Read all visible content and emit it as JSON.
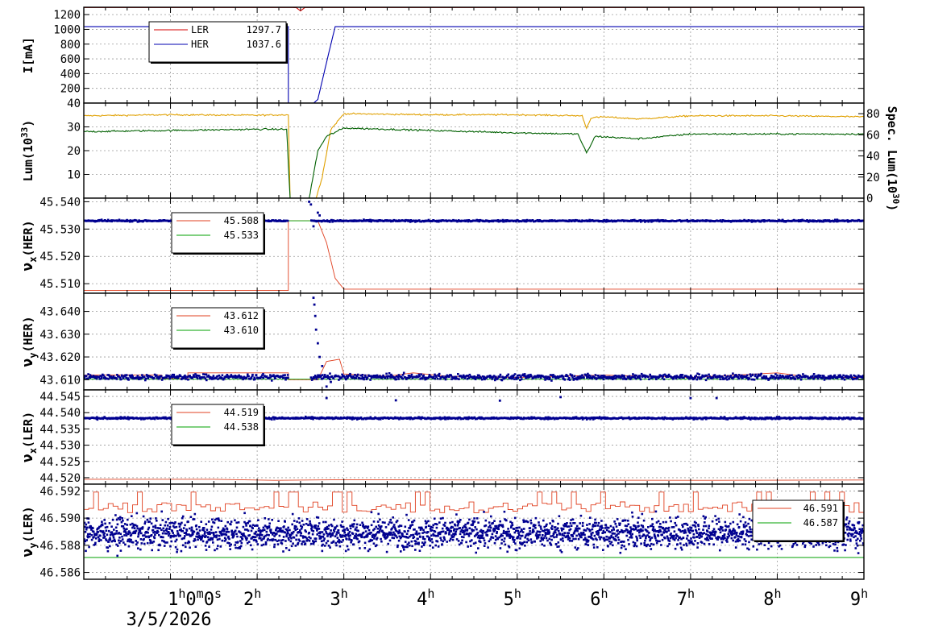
{
  "chart_data": [
    {
      "type": "line",
      "ylabel": "I[mA]",
      "ylim": [
        0,
        1300
      ],
      "yticks": [
        200,
        400,
        600,
        800,
        1000,
        1200
      ],
      "legend": {
        "placement": "top-left",
        "entries": [
          {
            "name": "LER",
            "value": "1297.7",
            "color": "#d40000"
          },
          {
            "name": "HER",
            "value": "1037.6",
            "color": "#0000b0"
          }
        ]
      },
      "series": [
        {
          "name": "LER",
          "color": "#d40000",
          "points": [
            [
              0,
              1297
            ],
            [
              2.3,
              1297
            ],
            [
              2.45,
              1296
            ],
            [
              2.5,
              1250
            ],
            [
              2.55,
              1297
            ],
            [
              9,
              1297
            ]
          ]
        },
        {
          "name": "HER",
          "color": "#0000b0",
          "points": [
            [
              0,
              1037
            ],
            [
              2.36,
              1037
            ],
            [
              2.36,
              0
            ],
            [
              2.65,
              0
            ],
            [
              2.7,
              50
            ],
            [
              2.75,
              300
            ],
            [
              2.82,
              650
            ],
            [
              2.9,
              1037
            ],
            [
              9,
              1037
            ]
          ]
        }
      ]
    },
    {
      "type": "line",
      "ylabel": "Lum(10^33)",
      "y2label": "Spec. Lum(10^30)",
      "ylim": [
        0,
        40
      ],
      "yticks": [
        10,
        20,
        30,
        40
      ],
      "y2lim": [
        0,
        90
      ],
      "y2ticks": [
        0,
        20,
        40,
        60,
        80
      ],
      "series": [
        {
          "name": "Spec. Lum",
          "axis": "right",
          "color": "#e0a000",
          "points": [
            [
              0,
              78
            ],
            [
              1,
              79
            ],
            [
              2,
              78.5
            ],
            [
              2.36,
              79
            ],
            [
              2.38,
              0
            ],
            [
              2.68,
              0
            ],
            [
              2.75,
              20
            ],
            [
              2.85,
              65
            ],
            [
              3.0,
              80
            ],
            [
              4,
              79
            ],
            [
              5,
              79
            ],
            [
              5.75,
              78
            ],
            [
              5.8,
              66
            ],
            [
              5.85,
              76
            ],
            [
              6,
              77
            ],
            [
              6.4,
              75
            ],
            [
              7,
              78
            ],
            [
              8,
              78
            ],
            [
              9,
              77
            ]
          ]
        },
        {
          "name": "Lum",
          "axis": "left",
          "color": "#006000",
          "points": [
            [
              0,
              28
            ],
            [
              1,
              28.5
            ],
            [
              2,
              29
            ],
            [
              2.34,
              29
            ],
            [
              2.36,
              14
            ],
            [
              2.38,
              0
            ],
            [
              2.6,
              0
            ],
            [
              2.65,
              10
            ],
            [
              2.7,
              20
            ],
            [
              2.8,
              26
            ],
            [
              3.0,
              29.5
            ],
            [
              4,
              28.5
            ],
            [
              5,
              27.5
            ],
            [
              5.7,
              27
            ],
            [
              5.8,
              19
            ],
            [
              5.9,
              26
            ],
            [
              6.4,
              25
            ],
            [
              7,
              27
            ],
            [
              8,
              27
            ],
            [
              9,
              27
            ]
          ]
        }
      ]
    },
    {
      "type": "scatter",
      "ylabel": "νx(HER)",
      "ylim": [
        45.5065,
        45.5413
      ],
      "yticks": [
        45.51,
        45.52,
        45.53,
        45.54
      ],
      "legend": {
        "placement": "top-left",
        "entries": [
          {
            "name": "",
            "value": "45.508",
            "color": "#e04020"
          },
          {
            "name": "",
            "value": "45.533",
            "color": "#00a000"
          }
        ]
      },
      "series": [
        {
          "name": "set",
          "kind": "line",
          "color": "#e04020",
          "points": [
            [
              0,
              45.5075
            ],
            [
              2.36,
              45.5075
            ],
            [
              2.36,
              45.533
            ],
            [
              2.7,
              45.533
            ],
            [
              2.8,
              45.525
            ],
            [
              2.9,
              45.512
            ],
            [
              3,
              45.508
            ],
            [
              9,
              45.508
            ]
          ]
        },
        {
          "name": "ref",
          "kind": "line",
          "color": "#00a000",
          "points": [
            [
              0,
              45.533
            ],
            [
              9,
              45.533
            ]
          ]
        },
        {
          "name": "meas",
          "kind": "dots",
          "color": "#000090",
          "base": 45.533,
          "spread": 0.0003,
          "xmin": 0.0,
          "xmax": 9.0,
          "n": 1100,
          "gaps": [
            [
              2.36,
              2.62
            ]
          ],
          "outliers": [
            [
              2.6,
              45.54
            ],
            [
              2.62,
              45.539
            ],
            [
              2.65,
              45.531
            ],
            [
              2.7,
              45.536
            ],
            [
              2.72,
              45.535
            ]
          ]
        }
      ]
    },
    {
      "type": "scatter",
      "ylabel": "νy(HER)",
      "ylim": [
        43.6055,
        43.648
      ],
      "yticks": [
        43.61,
        43.62,
        43.63,
        43.64
      ],
      "legend": {
        "placement": "top-left",
        "entries": [
          {
            "name": "",
            "value": "43.612",
            "color": "#e04020"
          },
          {
            "name": "",
            "value": "43.610",
            "color": "#00a000"
          }
        ]
      },
      "series": [
        {
          "name": "set",
          "kind": "line",
          "color": "#e04020",
          "points": [
            [
              0,
              43.612
            ],
            [
              0.9,
              43.612
            ],
            [
              0.9,
              43.6105
            ],
            [
              1.2,
              43.6105
            ],
            [
              1.2,
              43.613
            ],
            [
              2.36,
              43.613
            ],
            [
              2.36,
              43.61
            ],
            [
              2.7,
              43.61
            ],
            [
              2.8,
              43.618
            ],
            [
              2.95,
              43.619
            ],
            [
              3.0,
              43.6125
            ],
            [
              3.5,
              43.6115
            ],
            [
              3.8,
              43.613
            ],
            [
              4.2,
              43.6115
            ],
            [
              5,
              43.611
            ],
            [
              6,
              43.612
            ],
            [
              7,
              43.611
            ],
            [
              8,
              43.613
            ],
            [
              8.4,
              43.611
            ],
            [
              9,
              43.611
            ]
          ]
        },
        {
          "name": "ref",
          "kind": "line",
          "color": "#00a000",
          "points": [
            [
              0,
              43.6102
            ],
            [
              9,
              43.6102
            ]
          ]
        },
        {
          "name": "meas",
          "kind": "dots",
          "color": "#000090",
          "base": 43.6112,
          "spread": 0.0012,
          "xmin": 0.0,
          "xmax": 9.0,
          "n": 1100,
          "gaps": [
            [
              2.36,
              2.62
            ]
          ],
          "outliers": [
            [
              2.65,
              43.646
            ],
            [
              2.66,
              43.643
            ],
            [
              2.67,
              43.638
            ],
            [
              2.68,
              43.632
            ],
            [
              2.7,
              43.626
            ],
            [
              2.72,
              43.62
            ],
            [
              2.75,
              43.616
            ],
            [
              2.78,
              43.612
            ],
            [
              2.8,
              43.607
            ],
            [
              2.85,
              43.609
            ]
          ]
        }
      ]
    },
    {
      "type": "scatter",
      "ylabel": "νx(LER)",
      "ylim": [
        44.518,
        44.547
      ],
      "yticks": [
        44.52,
        44.525,
        44.53,
        44.535,
        44.54,
        44.545
      ],
      "legend": {
        "placement": "top-left",
        "entries": [
          {
            "name": "",
            "value": "44.519",
            "color": "#e04020"
          },
          {
            "name": "",
            "value": "44.538",
            "color": "#00a000"
          }
        ]
      },
      "series": [
        {
          "name": "set",
          "kind": "line",
          "color": "#e04020",
          "points": [
            [
              0,
              44.5195
            ],
            [
              1.5,
              44.5195
            ],
            [
              2.2,
              44.5192
            ],
            [
              3,
              44.5194
            ],
            [
              5,
              44.5193
            ],
            [
              7,
              44.5192
            ],
            [
              9,
              44.5193
            ]
          ]
        },
        {
          "name": "ref",
          "kind": "line",
          "color": "#00a000",
          "points": [
            [
              0,
              44.5383
            ],
            [
              9,
              44.5383
            ]
          ]
        },
        {
          "name": "meas",
          "kind": "dots",
          "color": "#000090",
          "base": 44.5383,
          "spread": 0.0003,
          "xmin": 0.0,
          "xmax": 9.0,
          "n": 1100,
          "gaps": [],
          "outliers": [
            [
              2.8,
              44.5445
            ],
            [
              3.6,
              44.5438
            ],
            [
              4.8,
              44.5437
            ],
            [
              5.5,
              44.5448
            ],
            [
              7.0,
              44.5445
            ],
            [
              7.3,
              44.5445
            ]
          ]
        }
      ]
    },
    {
      "type": "scatter",
      "ylabel": "νy(LER)",
      "ylim": [
        46.5855,
        46.5925
      ],
      "yticks": [
        46.586,
        46.588,
        46.59,
        46.592
      ],
      "legend": {
        "placement": "top-right",
        "entries": [
          {
            "name": "",
            "value": "46.591",
            "color": "#e04020"
          },
          {
            "name": "",
            "value": "46.587",
            "color": "#00a000"
          }
        ]
      },
      "series": [
        {
          "name": "set",
          "kind": "steps",
          "color": "#e04020",
          "base": 46.5908,
          "spread": 0.0004,
          "xmin": 0.0,
          "xmax": 9.0,
          "n": 160
        },
        {
          "name": "ref",
          "kind": "line",
          "color": "#00a000",
          "points": [
            [
              0,
              46.5871
            ],
            [
              9,
              46.5871
            ]
          ]
        },
        {
          "name": "meas",
          "kind": "dots",
          "color": "#000090",
          "base": 46.5889,
          "spread": 0.0011,
          "xmin": 0.0,
          "xmax": 9.0,
          "n": 2600,
          "gaps": []
        }
      ]
    }
  ],
  "x_axis": {
    "xlim": [
      0,
      9
    ],
    "ticks": [
      {
        "x": 1,
        "text": "1",
        "sup": "h",
        "extra": "0",
        "extra_sup": "m",
        "extra2": "0",
        "extra2_sup": "s"
      },
      {
        "x": 2,
        "text": "2",
        "sup": "h"
      },
      {
        "x": 3,
        "text": "3",
        "sup": "h"
      },
      {
        "x": 4,
        "text": "4",
        "sup": "h"
      },
      {
        "x": 5,
        "text": "5",
        "sup": "h"
      },
      {
        "x": 6,
        "text": "6",
        "sup": "h"
      },
      {
        "x": 7,
        "text": "7",
        "sup": "h"
      },
      {
        "x": 8,
        "text": "8",
        "sup": "h"
      },
      {
        "x": 9,
        "text": "9",
        "sup": "h"
      }
    ],
    "date": "3/5/2026"
  }
}
